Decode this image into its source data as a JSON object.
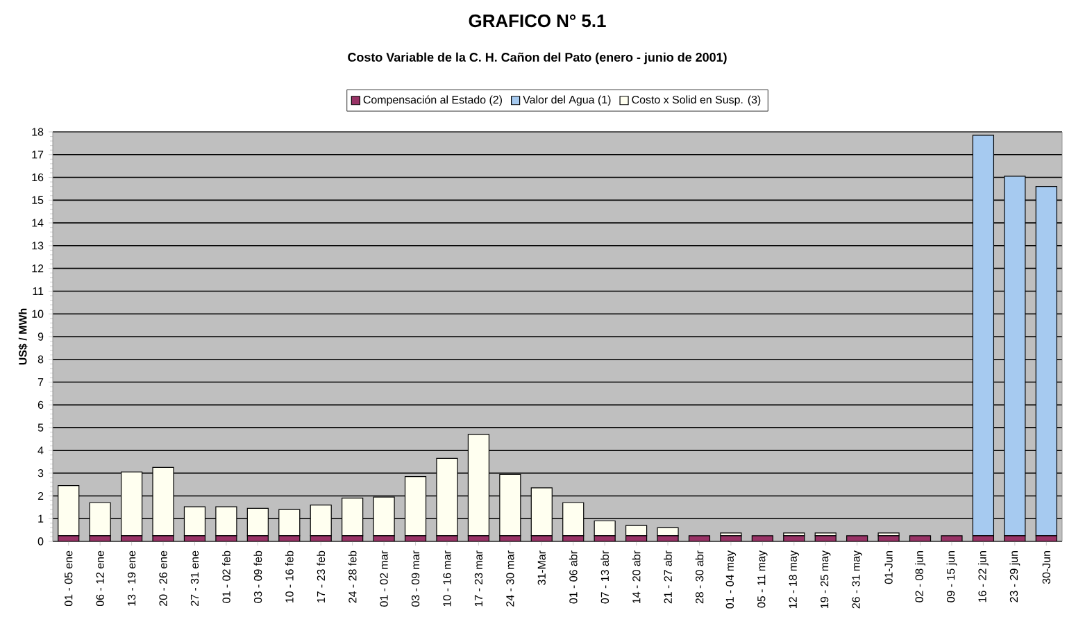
{
  "chart_data": {
    "type": "bar",
    "title": "GRAFICO N° 5.1",
    "subtitle": "Costo Variable de la C. H. Cañon del Pato (enero - junio de 2001)",
    "ylabel": "US$ / MWh",
    "categories": [
      "01 - 05 ene",
      "06 - 12 ene",
      "13 - 19 ene",
      "20 - 26 ene",
      "27 - 31 ene",
      "01 - 02 feb",
      "03 - 09 feb",
      "10 - 16 feb",
      "17 - 23 feb",
      "24 - 28 feb",
      "01 - 02 mar",
      "03 - 09 mar",
      "10 - 16 mar",
      "17 - 23 mar",
      "24 - 30 mar",
      "31-Mar",
      "01 - 06 abr",
      "07 - 13 abr",
      "14 - 20 abr",
      "21 - 27 abr",
      "28 - 30 abr",
      "01 - 04 may",
      "05 - 11 may",
      "12 - 18 may",
      "19 - 25 may",
      "26 - 31 may",
      "01-Jun",
      "02 - 08 jun",
      "09 - 15 jun",
      "16 - 22 jun",
      "23 - 29 jun",
      "30-Jun"
    ],
    "stacked": true,
    "series": [
      {
        "name": "Compensación al Estado (2)",
        "color": "#993366",
        "values": [
          0.25,
          0.25,
          0.25,
          0.25,
          0.25,
          0.25,
          0.25,
          0.25,
          0.25,
          0.25,
          0.25,
          0.25,
          0.25,
          0.25,
          0.25,
          0.25,
          0.25,
          0.25,
          0.25,
          0.25,
          0.25,
          0.25,
          0.25,
          0.25,
          0.25,
          0.25,
          0.25,
          0.25,
          0.25,
          0.25,
          0.25,
          0.25
        ]
      },
      {
        "name": "Valor del Agua (1)",
        "color": "#a6caf0",
        "values": [
          0,
          0,
          0,
          0,
          0,
          0,
          0,
          0,
          0,
          0,
          0,
          0,
          0,
          0,
          0,
          0,
          0,
          0,
          0,
          0,
          0,
          0,
          0,
          0,
          0,
          0,
          0,
          0,
          0,
          17.6,
          15.8,
          15.35
        ]
      },
      {
        "name": "Costo x Solid en Susp. (3)",
        "color": "#fffff0",
        "values": [
          2.2,
          1.45,
          2.8,
          3.0,
          1.27,
          1.27,
          1.2,
          1.15,
          1.35,
          1.65,
          1.7,
          2.6,
          3.4,
          4.45,
          2.7,
          2.1,
          1.45,
          0.65,
          0.45,
          0.35,
          0,
          0.12,
          0,
          0.12,
          0.12,
          0,
          0.12,
          0,
          0,
          0,
          0,
          0
        ]
      }
    ],
    "ylim": [
      0,
      18
    ],
    "yticks": [
      0,
      1,
      2,
      3,
      4,
      5,
      6,
      7,
      8,
      9,
      10,
      11,
      12,
      13,
      14,
      15,
      16,
      17,
      18
    ],
    "grid": "y",
    "legend": "top"
  }
}
